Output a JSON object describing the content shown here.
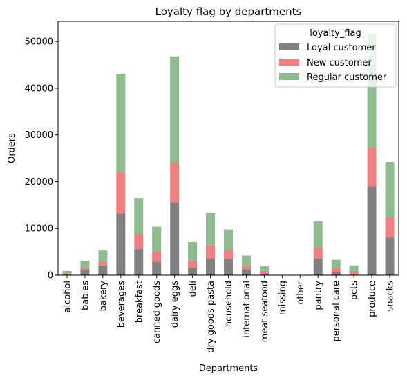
{
  "chart_data": {
    "type": "bar",
    "stacked": true,
    "title": "Loyalty flag by departments",
    "xlabel": "Departments",
    "ylabel": "Orders",
    "ylim": [
      0,
      54300
    ],
    "yticks": [
      0,
      10000,
      20000,
      30000,
      40000,
      50000
    ],
    "grid": false,
    "legend": {
      "title": "loyalty_flag",
      "placement": "top-right"
    },
    "categories": [
      "alcohol",
      "babies",
      "bakery",
      "beverages",
      "breakfast",
      "canned goods",
      "dairy eggs",
      "deli",
      "dry goods pasta",
      "household",
      "international",
      "meat seafood",
      "missing",
      "other",
      "pantry",
      "personal care",
      "pets",
      "produce",
      "snacks"
    ],
    "series": [
      {
        "name": "Loyal customer",
        "color": "#808080",
        "values": [
          150,
          1100,
          2100,
          13200,
          5600,
          2900,
          15600,
          1600,
          3600,
          3400,
          1300,
          400,
          0,
          0,
          3600,
          600,
          300,
          19000,
          8100
        ]
      },
      {
        "name": "New customer",
        "color": "#f08080",
        "values": [
          250,
          500,
          900,
          8900,
          3100,
          2300,
          8600,
          1600,
          2800,
          2000,
          700,
          500,
          0,
          0,
          2300,
          1000,
          600,
          8300,
          4400
        ]
      },
      {
        "name": "Regular customer",
        "color": "#8fbc8f",
        "values": [
          500,
          1500,
          2300,
          21000,
          7800,
          5200,
          22600,
          3900,
          6900,
          4400,
          2200,
          1000,
          0,
          0,
          5700,
          1700,
          1200,
          24400,
          11700
        ]
      }
    ]
  }
}
